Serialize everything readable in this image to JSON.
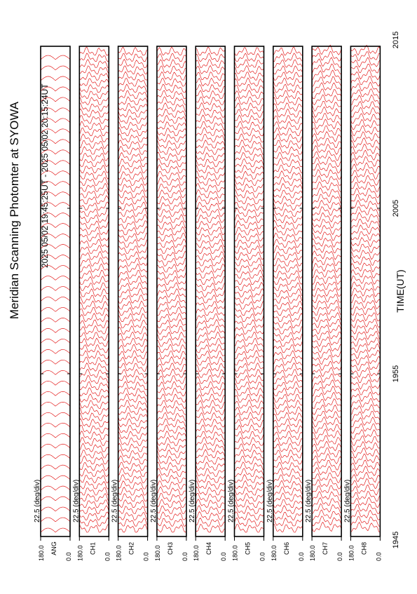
{
  "header": {
    "title": "Meridian Scanning Photomter at SYOWA",
    "subtitle": "2025 05/02 19:45:25UT - 2025 05/02 20:15:24UT"
  },
  "time_axis": {
    "label": "TIME(UT)",
    "ticks": [
      "1945",
      "1955",
      "2005",
      "2015"
    ]
  },
  "panels": [
    {
      "scale": "22.5 (deg/div)",
      "channel": "ANG",
      "max": "180.0",
      "min": "0.0"
    },
    {
      "scale": "22.5 (deg/div)",
      "channel": "CH1",
      "max": "180.0",
      "min": "0.0"
    },
    {
      "scale": "22.5 (deg/div)",
      "channel": "CH2",
      "max": "180.0",
      "min": "0.0"
    },
    {
      "scale": "22.5 (deg/div)",
      "channel": "CH3",
      "max": "180.0",
      "min": "0.0"
    },
    {
      "scale": "22.5 (deg/div)",
      "channel": "CH4",
      "max": "180.0",
      "min": "0.0"
    },
    {
      "scale": "22.5 (deg/div)",
      "channel": "CH5",
      "max": "180.0",
      "min": "0.0"
    },
    {
      "scale": "22.5 (deg/div)",
      "channel": "CH6",
      "max": "180.0",
      "min": "0.0"
    },
    {
      "scale": "22.5 (deg/div)",
      "channel": "CH7",
      "max": "180.0",
      "min": "0.0"
    },
    {
      "scale": "22.5 (deg/div)",
      "channel": "CH8",
      "max": "180.0",
      "min": "0.0"
    }
  ]
}
